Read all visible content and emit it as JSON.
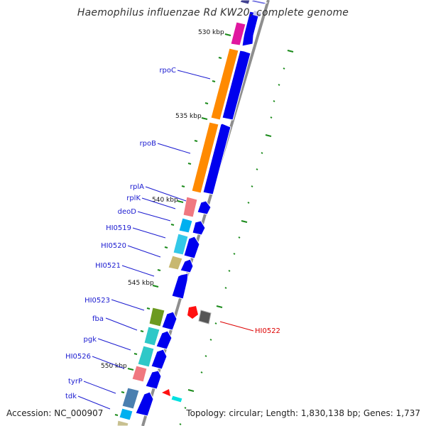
{
  "title": "Haemophilus influenzae Rd KW20, complete genome",
  "accession": "Accession: NC_000907",
  "summary": "Topology: circular; Length: 1,830,138 bp; Genes: 1,737",
  "colors": {
    "reverse_strand": "#0000ee",
    "label_blue": "#1a1ad0",
    "label_red": "#dd0000",
    "backbone": "#909090",
    "tick_green": "#1a8a1a"
  },
  "scale_labels": [
    "530 kbp",
    "535 kbp",
    "540 kbp",
    "545 kbp",
    "550 kbp"
  ],
  "gene_labels": [
    "rpoC",
    "rpoB",
    "rplA",
    "rplK",
    "deoD",
    "HI0519",
    "HI0520",
    "HI0521",
    "HI0523",
    "fba",
    "pgk",
    "HI0526",
    "tyrP",
    "tdk"
  ],
  "highlight_label": "HI0522"
}
